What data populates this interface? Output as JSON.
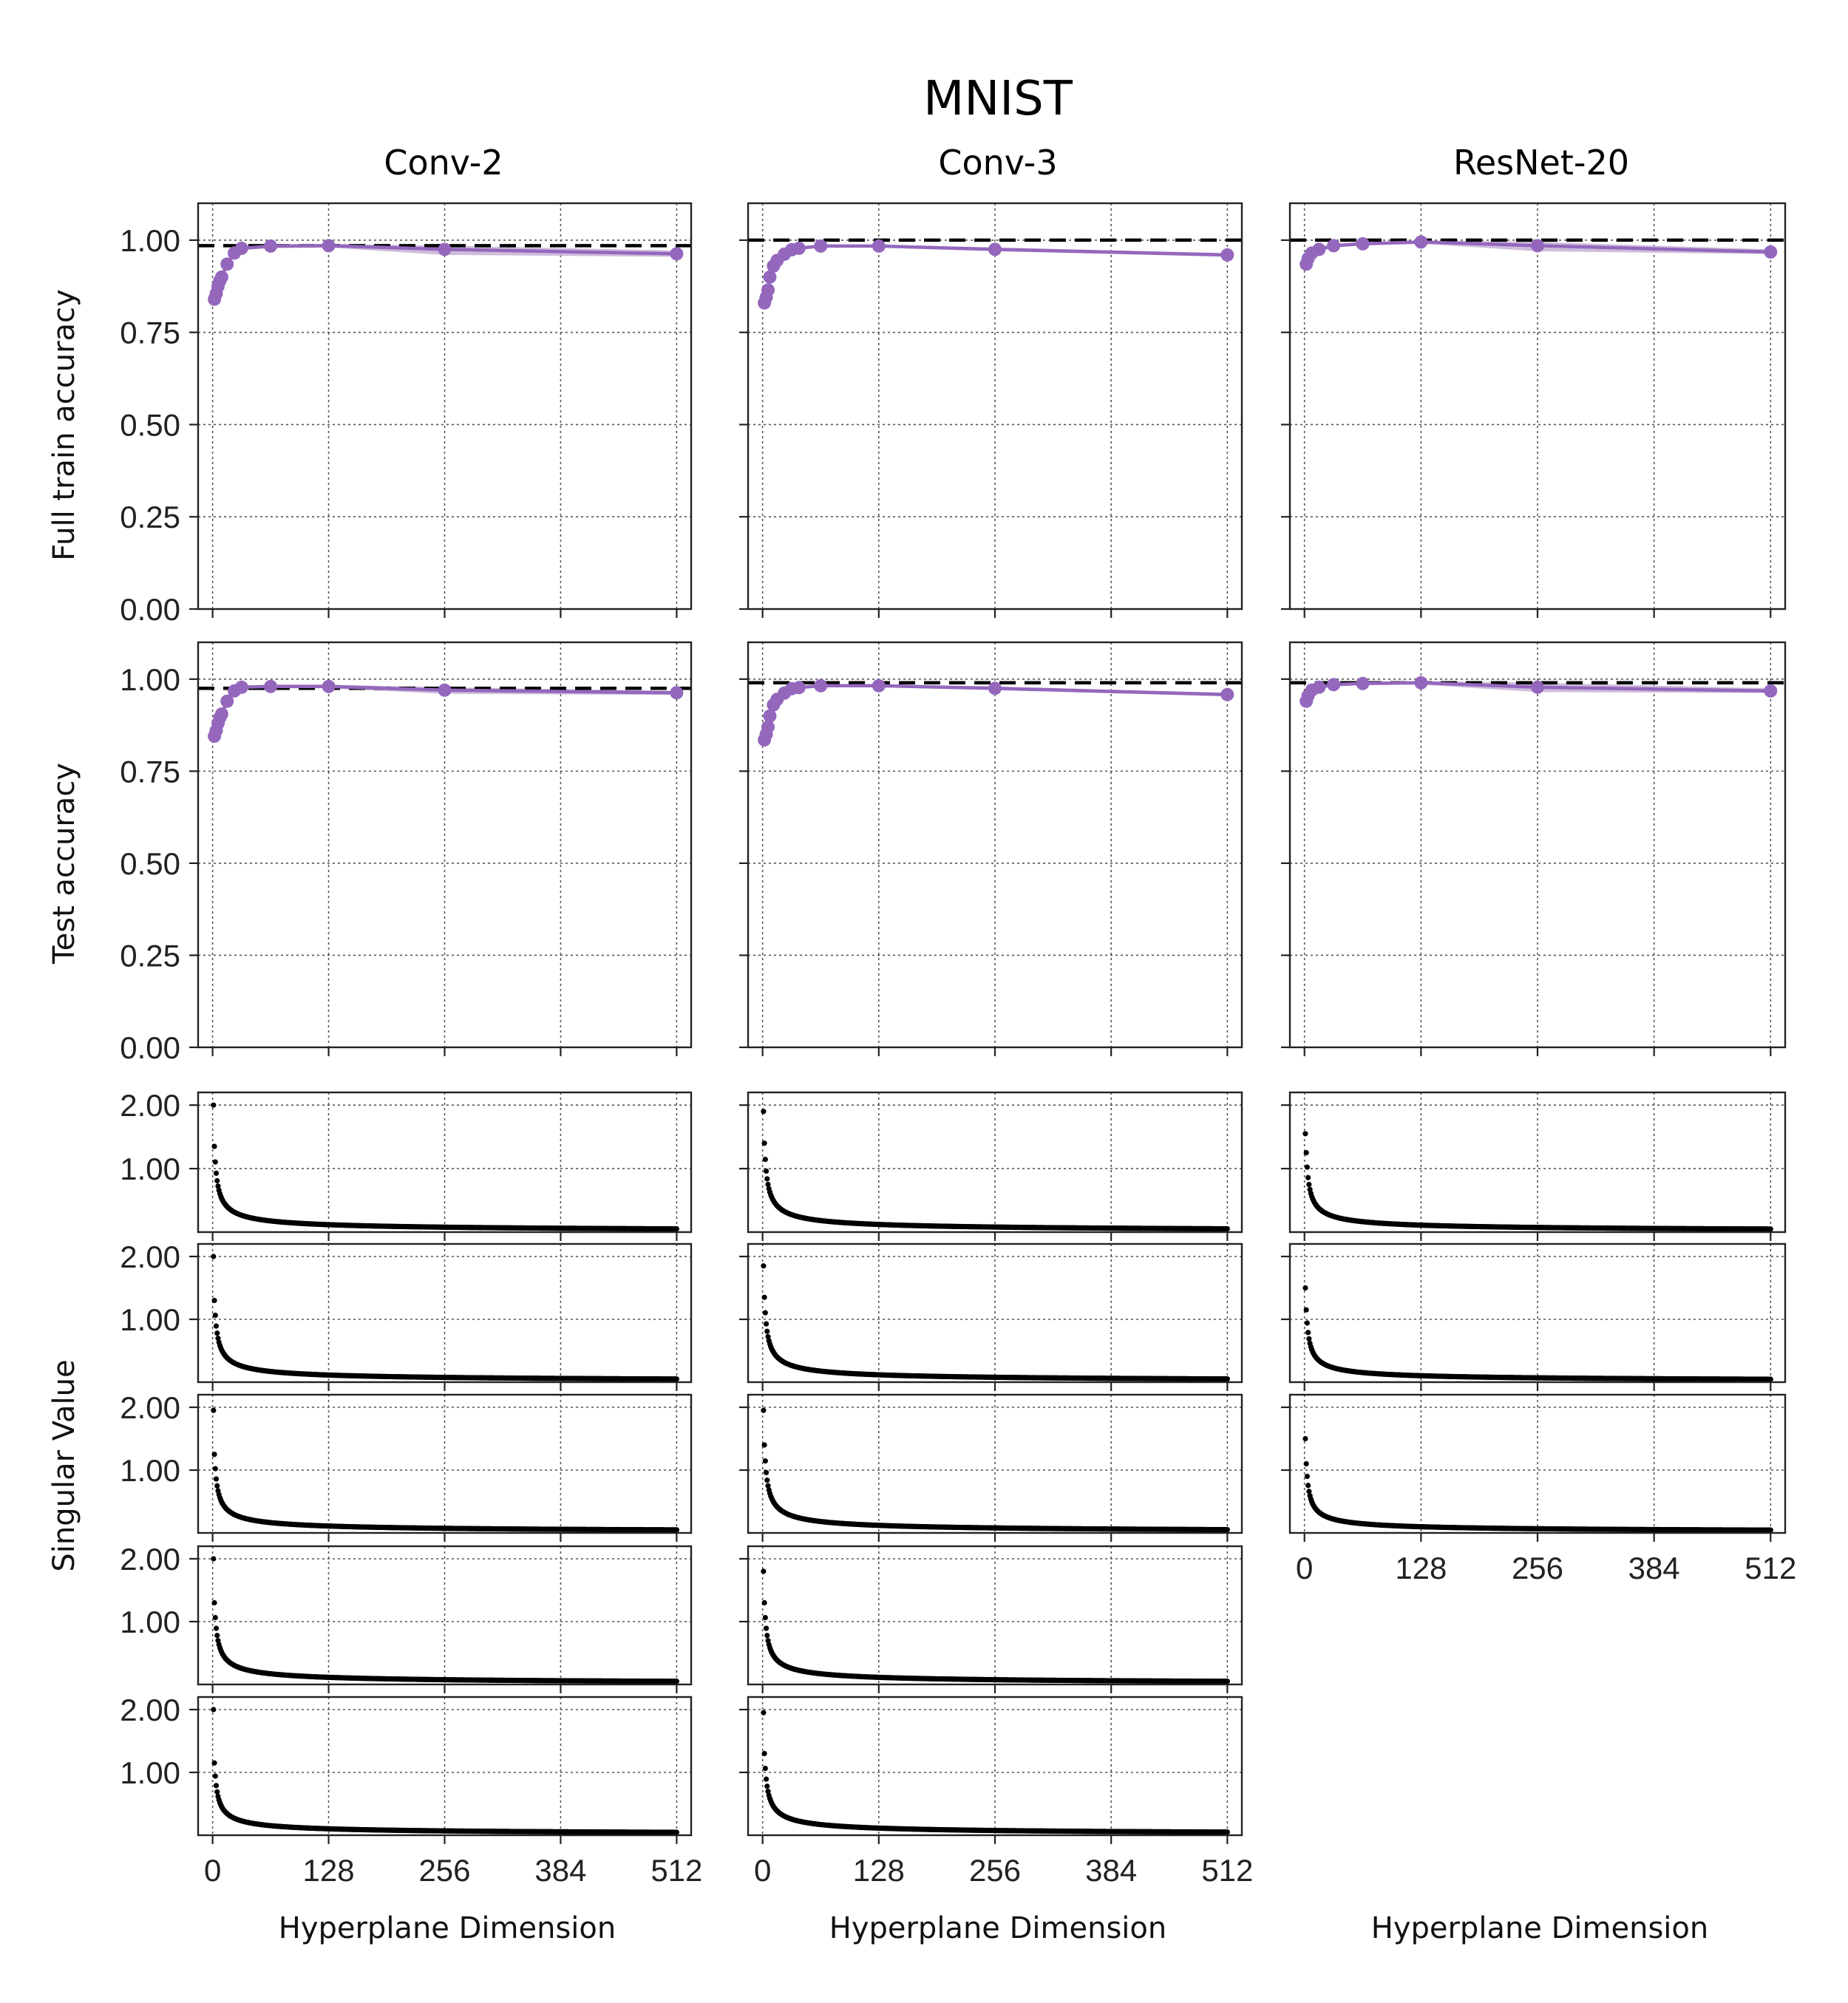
{
  "figure": {
    "title": "MNIST",
    "columns": [
      "Conv-2",
      "Conv-3",
      "ResNet-20"
    ],
    "xlabel": "Hyperplane Dimension",
    "ylabel_train": "Full train accuracy",
    "ylabel_test": "Test accuracy",
    "ylabel_sv": "Singular Value"
  },
  "colors": {
    "series": "#9467bd",
    "band": "#c5b0d5",
    "baseline": "#000000",
    "points": "#000000",
    "grid": "#555555"
  },
  "chart_data": [
    {
      "type": "line",
      "panel": "train-conv-2",
      "title": "Conv-2",
      "xlabel": "",
      "ylabel": "Full train accuracy",
      "xlim": [
        -16,
        528
      ],
      "ylim": [
        0,
        1.1
      ],
      "xticks": [
        0,
        128,
        256,
        384,
        512
      ],
      "yticks": [
        0,
        0.25,
        0.5,
        0.75,
        1.0
      ],
      "ytick_labels": [
        "0.00",
        "0.25",
        "0.50",
        "0.75",
        "1.00"
      ],
      "baseline": 0.985,
      "series": [
        {
          "name": "hyperplane",
          "x": [
            2,
            4,
            6,
            8,
            10,
            16,
            24,
            32,
            64,
            128,
            256,
            512
          ],
          "y": [
            0.84,
            0.855,
            0.875,
            0.89,
            0.9,
            0.935,
            0.965,
            0.978,
            0.984,
            0.985,
            0.975,
            0.963
          ]
        }
      ],
      "band": {
        "lower": [
          0.835,
          0.85,
          0.87,
          0.885,
          0.895,
          0.93,
          0.96,
          0.973,
          0.978,
          0.98,
          0.96,
          0.955
        ],
        "upper": [
          0.845,
          0.86,
          0.88,
          0.895,
          0.905,
          0.94,
          0.97,
          0.983,
          0.988,
          0.99,
          0.985,
          0.972
        ]
      }
    },
    {
      "type": "line",
      "panel": "train-conv-3",
      "title": "Conv-3",
      "xlabel": "",
      "ylabel": "",
      "xlim": [
        -16,
        528
      ],
      "ylim": [
        0,
        1.1
      ],
      "xticks": [
        0,
        128,
        256,
        384,
        512
      ],
      "yticks": [
        0,
        0.25,
        0.5,
        0.75,
        1.0
      ],
      "baseline": 1.0,
      "series": [
        {
          "name": "hyperplane",
          "x": [
            2,
            4,
            6,
            8,
            12,
            16,
            24,
            32,
            40,
            64,
            128,
            256,
            512
          ],
          "y": [
            0.83,
            0.845,
            0.865,
            0.9,
            0.93,
            0.945,
            0.962,
            0.974,
            0.978,
            0.984,
            0.984,
            0.975,
            0.96
          ]
        }
      ],
      "band": {
        "lower": [
          0.825,
          0.84,
          0.86,
          0.895,
          0.925,
          0.94,
          0.958,
          0.97,
          0.974,
          0.98,
          0.98,
          0.97,
          0.955
        ],
        "upper": [
          0.835,
          0.85,
          0.87,
          0.905,
          0.935,
          0.95,
          0.966,
          0.978,
          0.982,
          0.988,
          0.988,
          0.98,
          0.965
        ]
      }
    },
    {
      "type": "line",
      "panel": "train-resnet-20",
      "title": "ResNet-20",
      "xlabel": "",
      "ylabel": "",
      "xlim": [
        -16,
        528
      ],
      "ylim": [
        0,
        1.1
      ],
      "xticks": [
        0,
        128,
        256,
        384,
        512
      ],
      "yticks": [
        0,
        0.25,
        0.5,
        0.75,
        1.0
      ],
      "baseline": 1.0,
      "series": [
        {
          "name": "hyperplane",
          "x": [
            2,
            4,
            8,
            16,
            32,
            64,
            128,
            256,
            512
          ],
          "y": [
            0.935,
            0.95,
            0.965,
            0.975,
            0.985,
            0.99,
            0.995,
            0.985,
            0.968
          ]
        }
      ],
      "band": {
        "lower": [
          0.93,
          0.945,
          0.96,
          0.97,
          0.98,
          0.986,
          0.99,
          0.97,
          0.962
        ],
        "upper": [
          0.94,
          0.955,
          0.97,
          0.98,
          0.99,
          0.994,
          0.999,
          0.995,
          0.975
        ]
      }
    },
    {
      "type": "line",
      "panel": "test-conv-2",
      "title": "",
      "xlabel": "",
      "ylabel": "Test accuracy",
      "xlim": [
        -16,
        528
      ],
      "ylim": [
        0,
        1.1
      ],
      "xticks": [
        0,
        128,
        256,
        384,
        512
      ],
      "yticks": [
        0,
        0.25,
        0.5,
        0.75,
        1.0
      ],
      "ytick_labels": [
        "0.00",
        "0.25",
        "0.50",
        "0.75",
        "1.00"
      ],
      "baseline": 0.975,
      "series": [
        {
          "name": "hyperplane",
          "x": [
            2,
            4,
            6,
            8,
            10,
            16,
            24,
            32,
            64,
            128,
            256,
            512
          ],
          "y": [
            0.845,
            0.86,
            0.88,
            0.895,
            0.905,
            0.94,
            0.968,
            0.978,
            0.98,
            0.98,
            0.97,
            0.963
          ]
        }
      ],
      "band": {
        "lower": [
          0.84,
          0.855,
          0.875,
          0.89,
          0.9,
          0.935,
          0.963,
          0.973,
          0.975,
          0.975,
          0.96,
          0.957
        ],
        "upper": [
          0.85,
          0.865,
          0.885,
          0.9,
          0.91,
          0.945,
          0.973,
          0.983,
          0.985,
          0.985,
          0.978,
          0.968
        ]
      }
    },
    {
      "type": "line",
      "panel": "test-conv-3",
      "title": "",
      "xlabel": "",
      "ylabel": "",
      "xlim": [
        -16,
        528
      ],
      "ylim": [
        0,
        1.1
      ],
      "xticks": [
        0,
        128,
        256,
        384,
        512
      ],
      "yticks": [
        0,
        0.25,
        0.5,
        0.75,
        1.0
      ],
      "baseline": 0.99,
      "series": [
        {
          "name": "hyperplane",
          "x": [
            2,
            4,
            6,
            8,
            12,
            16,
            24,
            32,
            40,
            64,
            128,
            256,
            512
          ],
          "y": [
            0.835,
            0.85,
            0.87,
            0.9,
            0.93,
            0.945,
            0.962,
            0.974,
            0.977,
            0.982,
            0.982,
            0.975,
            0.958
          ]
        }
      ],
      "band": {
        "lower": [
          0.83,
          0.845,
          0.865,
          0.895,
          0.925,
          0.94,
          0.958,
          0.97,
          0.973,
          0.978,
          0.978,
          0.97,
          0.953
        ],
        "upper": [
          0.84,
          0.855,
          0.875,
          0.905,
          0.935,
          0.95,
          0.966,
          0.978,
          0.981,
          0.986,
          0.986,
          0.98,
          0.963
        ]
      }
    },
    {
      "type": "line",
      "panel": "test-resnet-20",
      "title": "",
      "xlabel": "",
      "ylabel": "",
      "xlim": [
        -16,
        528
      ],
      "ylim": [
        0,
        1.1
      ],
      "xticks": [
        0,
        128,
        256,
        384,
        512
      ],
      "yticks": [
        0,
        0.25,
        0.5,
        0.75,
        1.0
      ],
      "baseline": 0.99,
      "series": [
        {
          "name": "hyperplane",
          "x": [
            2,
            4,
            8,
            16,
            32,
            64,
            128,
            256,
            512
          ],
          "y": [
            0.94,
            0.955,
            0.97,
            0.978,
            0.985,
            0.988,
            0.99,
            0.978,
            0.968
          ]
        }
      ],
      "band": {
        "lower": [
          0.935,
          0.95,
          0.965,
          0.973,
          0.98,
          0.984,
          0.985,
          0.965,
          0.962
        ],
        "upper": [
          0.945,
          0.96,
          0.975,
          0.983,
          0.99,
          0.992,
          0.995,
          0.99,
          0.975
        ]
      }
    },
    {
      "type": "scatter",
      "panel": "sv-conv-2-1",
      "ylabel": "Singular Value",
      "xlim": [
        -16,
        528
      ],
      "ylim": [
        0,
        2.2
      ],
      "xticks": [
        0,
        128,
        256,
        384,
        512
      ],
      "yticks": [
        1.0,
        2.0
      ],
      "ytick_labels": [
        "1.00",
        "2.00"
      ],
      "n_points": 512,
      "sv_first": 2.0,
      "sv_second": 1.35,
      "sv_tail": 0.02
    },
    {
      "type": "scatter",
      "panel": "sv-conv-2-2",
      "ylabel": "",
      "xlim": [
        -16,
        528
      ],
      "ylim": [
        0,
        2.2
      ],
      "xticks": [
        0,
        128,
        256,
        384,
        512
      ],
      "yticks": [
        1.0,
        2.0
      ],
      "ytick_labels": [
        "1.00",
        "2.00"
      ],
      "n_points": 512,
      "sv_first": 2.0,
      "sv_second": 1.3,
      "sv_tail": 0.02
    },
    {
      "type": "scatter",
      "panel": "sv-conv-2-3",
      "ylabel": "",
      "xlim": [
        -16,
        528
      ],
      "ylim": [
        0,
        2.2
      ],
      "xticks": [
        0,
        128,
        256,
        384,
        512
      ],
      "yticks": [
        1.0,
        2.0
      ],
      "ytick_labels": [
        "1.00",
        "2.00"
      ],
      "n_points": 512,
      "sv_first": 1.95,
      "sv_second": 1.25,
      "sv_tail": 0.02
    },
    {
      "type": "scatter",
      "panel": "sv-conv-2-4",
      "ylabel": "",
      "xlim": [
        -16,
        528
      ],
      "ylim": [
        0,
        2.2
      ],
      "xticks": [
        0,
        128,
        256,
        384,
        512
      ],
      "yticks": [
        1.0,
        2.0
      ],
      "ytick_labels": [
        "1.00",
        "2.00"
      ],
      "n_points": 512,
      "sv_first": 2.0,
      "sv_second": 1.3,
      "sv_tail": 0.02
    },
    {
      "type": "scatter",
      "panel": "sv-conv-2-5",
      "ylabel": "",
      "xlabel": "Hyperplane Dimension",
      "xlim": [
        -16,
        528
      ],
      "ylim": [
        0,
        2.2
      ],
      "xticks": [
        0,
        128,
        256,
        384,
        512
      ],
      "yticks": [
        1.0,
        2.0
      ],
      "ytick_labels": [
        "1.00",
        "2.00"
      ],
      "n_points": 512,
      "sv_first": 2.0,
      "sv_second": 1.15,
      "sv_tail": 0.02
    },
    {
      "type": "scatter",
      "panel": "sv-conv-3-1",
      "ylabel": "",
      "xlim": [
        -16,
        528
      ],
      "ylim": [
        0,
        2.2
      ],
      "xticks": [
        0,
        128,
        256,
        384,
        512
      ],
      "yticks": [
        1.0,
        2.0
      ],
      "n_points": 512,
      "sv_first": 1.9,
      "sv_second": 1.4,
      "sv_tail": 0.02
    },
    {
      "type": "scatter",
      "panel": "sv-conv-3-2",
      "ylabel": "",
      "xlim": [
        -16,
        528
      ],
      "ylim": [
        0,
        2.2
      ],
      "xticks": [
        0,
        128,
        256,
        384,
        512
      ],
      "yticks": [
        1.0,
        2.0
      ],
      "n_points": 512,
      "sv_first": 1.85,
      "sv_second": 1.35,
      "sv_tail": 0.02
    },
    {
      "type": "scatter",
      "panel": "sv-conv-3-3",
      "ylabel": "",
      "xlim": [
        -16,
        528
      ],
      "ylim": [
        0,
        2.2
      ],
      "xticks": [
        0,
        128,
        256,
        384,
        512
      ],
      "yticks": [
        1.0,
        2.0
      ],
      "n_points": 512,
      "sv_first": 1.95,
      "sv_second": 1.4,
      "sv_tail": 0.02
    },
    {
      "type": "scatter",
      "panel": "sv-conv-3-4",
      "ylabel": "",
      "xlim": [
        -16,
        528
      ],
      "ylim": [
        0,
        2.2
      ],
      "xticks": [
        0,
        128,
        256,
        384,
        512
      ],
      "yticks": [
        1.0,
        2.0
      ],
      "n_points": 512,
      "sv_first": 1.8,
      "sv_second": 1.3,
      "sv_tail": 0.02
    },
    {
      "type": "scatter",
      "panel": "sv-conv-3-5",
      "ylabel": "",
      "xlabel": "Hyperplane Dimension",
      "xlim": [
        -16,
        528
      ],
      "ylim": [
        0,
        2.2
      ],
      "xticks": [
        0,
        128,
        256,
        384,
        512
      ],
      "yticks": [
        1.0,
        2.0
      ],
      "n_points": 512,
      "sv_first": 1.95,
      "sv_second": 1.3,
      "sv_tail": 0.02
    },
    {
      "type": "scatter",
      "panel": "sv-resnet-20-1",
      "ylabel": "",
      "xlim": [
        -16,
        528
      ],
      "ylim": [
        0,
        2.2
      ],
      "xticks": [
        0,
        128,
        256,
        384,
        512
      ],
      "yticks": [
        1.0,
        2.0
      ],
      "n_points": 512,
      "sv_first": 1.55,
      "sv_second": 1.25,
      "sv_tail": 0.02
    },
    {
      "type": "scatter",
      "panel": "sv-resnet-20-2",
      "ylabel": "",
      "xlim": [
        -16,
        528
      ],
      "ylim": [
        0,
        2.2
      ],
      "xticks": [
        0,
        128,
        256,
        384,
        512
      ],
      "yticks": [
        1.0,
        2.0
      ],
      "n_points": 512,
      "sv_first": 1.5,
      "sv_second": 1.15,
      "sv_tail": 0.02
    },
    {
      "type": "scatter",
      "panel": "sv-resnet-20-3",
      "ylabel": "",
      "xlabel": "Hyperplane Dimension",
      "xlim": [
        -16,
        528
      ],
      "ylim": [
        0,
        2.2
      ],
      "xticks": [
        0,
        128,
        256,
        384,
        512
      ],
      "yticks": [
        1.0,
        2.0
      ],
      "n_points": 512,
      "sv_first": 1.5,
      "sv_second": 1.1,
      "sv_tail": 0.02
    }
  ]
}
